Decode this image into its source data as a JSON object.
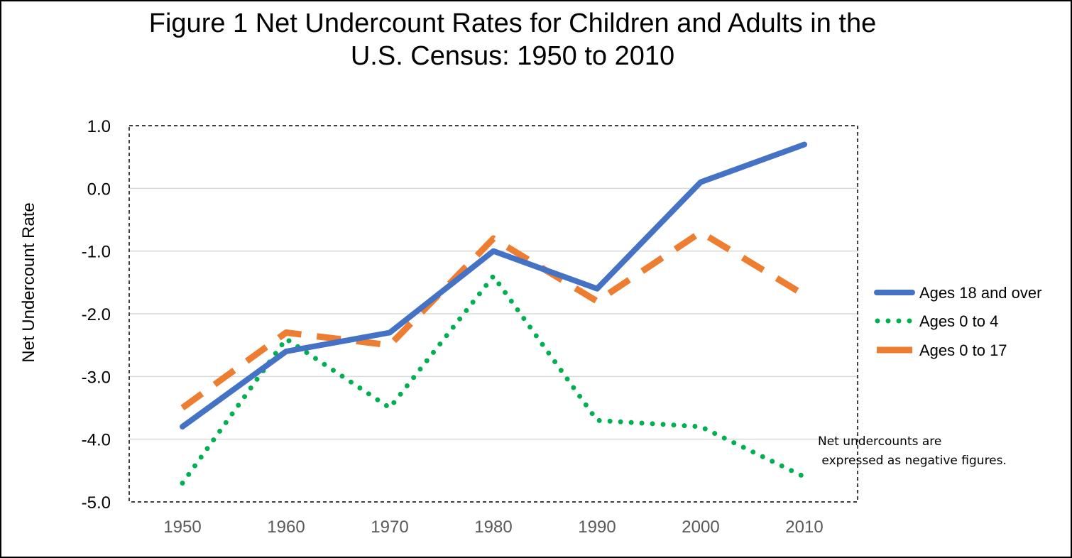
{
  "chart_data": {
    "type": "line",
    "title_lines": [
      "Figure 1 Net Undercount Rates for Children and Adults in the",
      "U.S. Census: 1950 to 2010"
    ],
    "xlabel": "",
    "ylabel": "Net Undercount Rate",
    "x": [
      1950,
      1960,
      1970,
      1980,
      1990,
      2000,
      2010
    ],
    "x_tick_labels": [
      "1950",
      "1960",
      "1970",
      "1980",
      "1990",
      "2000",
      "2010"
    ],
    "ylim": [
      -5.0,
      1.0
    ],
    "y_tick_labels": [
      "1.0",
      "0.0",
      "-1.0",
      "-2.0",
      "-3.0",
      "-4.0",
      "-5.0"
    ],
    "y_ticks": [
      1.0,
      0.0,
      -1.0,
      -2.0,
      -3.0,
      -4.0,
      -5.0
    ],
    "grid": true,
    "legend_position": "right",
    "series": [
      {
        "name": "Ages 18 and over",
        "values": [
          -3.8,
          -2.6,
          -2.3,
          -1.0,
          -1.6,
          0.1,
          0.7
        ],
        "color": "#4472C4",
        "style": "solid"
      },
      {
        "name": "Ages 0 to 4",
        "values": [
          -4.7,
          -2.4,
          -3.5,
          -1.4,
          -3.7,
          -3.8,
          -4.6
        ],
        "color": "#00B050",
        "style": "dotted"
      },
      {
        "name": "Ages 0 to 17",
        "values": [
          -3.5,
          -2.3,
          -2.5,
          -0.8,
          -1.8,
          -0.7,
          -1.7
        ],
        "color": "#ED7D31",
        "style": "dashed"
      }
    ],
    "annotation_lines": [
      "Net undercounts are",
      " expressed as negative figures."
    ]
  }
}
